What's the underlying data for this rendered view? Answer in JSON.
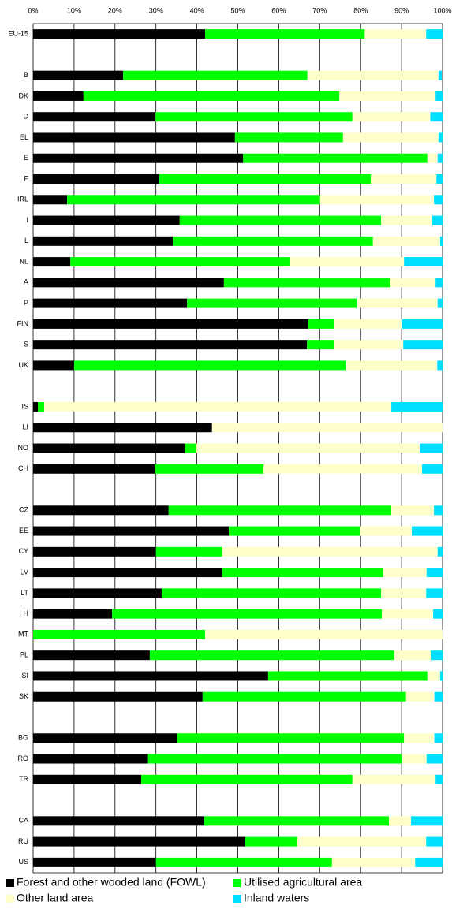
{
  "chart_data": {
    "type": "stacked-bar-horizontal",
    "categories": [
      "EU-15",
      null,
      "B",
      "DK",
      "D",
      "EL",
      "E",
      "F",
      "IRL",
      "I",
      "L",
      "NL",
      "A",
      "P",
      "FIN",
      "S",
      "UK",
      null,
      "IS",
      "LI",
      "NO",
      "CH",
      null,
      "CZ",
      "EE",
      "CY",
      "LV",
      "LT",
      "H",
      "MT",
      "PL",
      "SI",
      "SK",
      null,
      "BG",
      "RO",
      "TR",
      null,
      "CA",
      "RU",
      "US"
    ],
    "series": [
      {
        "name": "Forest and other wooded land (FOWL)",
        "color": "#000000",
        "values": [
          42,
          null,
          22,
          12.3,
          29.9,
          49.3,
          51.3,
          30.8,
          8.3,
          35.8,
          34.1,
          9.1,
          46.6,
          37.6,
          67.2,
          66.9,
          10,
          null,
          1.2,
          43.7,
          37,
          29.7,
          null,
          33.1,
          47.8,
          30,
          46.2,
          31.4,
          19.3,
          0,
          28.5,
          57.4,
          41.4,
          null,
          35.1,
          27.9,
          26.4,
          null,
          41.8,
          51.8,
          30
        ]
      },
      {
        "name": "Utilised agricultural area",
        "color": "#00ff00",
        "values": [
          39,
          null,
          45,
          62.5,
          48.1,
          26.4,
          45,
          51.7,
          61.8,
          49.2,
          48.9,
          53.7,
          40.7,
          41.4,
          6.4,
          6.7,
          66.3,
          null,
          1.5,
          0,
          2.9,
          26.6,
          null,
          54.4,
          32,
          16.2,
          39.3,
          53.6,
          65.9,
          42,
          59.7,
          38.9,
          49.7,
          null,
          55.5,
          62.1,
          51.6,
          null,
          45.1,
          12.7,
          43
        ]
      },
      {
        "name": "Other land area",
        "color": "#ffffcc",
        "values": [
          15,
          null,
          32,
          23.5,
          19,
          23.3,
          2.5,
          16,
          27.8,
          12.5,
          16.4,
          27.8,
          11,
          19.8,
          16.4,
          16.8,
          22.4,
          null,
          84.8,
          56.3,
          54.5,
          38.7,
          null,
          10.4,
          12.7,
          52.6,
          10.6,
          11,
          12.5,
          58,
          9.1,
          3.1,
          6.9,
          null,
          7.4,
          6.1,
          20.3,
          null,
          5.4,
          31.5,
          20.3
        ]
      },
      {
        "name": "Inland waters",
        "color": "#00dfff",
        "values": [
          4,
          null,
          0.8,
          1.7,
          3,
          1,
          1.2,
          1.5,
          2.1,
          2.5,
          0.6,
          9.4,
          1.7,
          1.2,
          10,
          9.6,
          1.3,
          null,
          12.5,
          0,
          5.6,
          5,
          null,
          2.1,
          7.5,
          1.2,
          3.9,
          4,
          2.3,
          0,
          2.7,
          0.6,
          2,
          null,
          2,
          3.9,
          1.7,
          null,
          7.7,
          4,
          6.7
        ]
      }
    ],
    "xlim": [
      0,
      100
    ],
    "xticks": [
      {
        "value": 0,
        "label": "0%"
      },
      {
        "value": 10,
        "label": "10%"
      },
      {
        "value": 20,
        "label": "20%"
      },
      {
        "value": 30,
        "label": "30%"
      },
      {
        "value": 40,
        "label": "40%"
      },
      {
        "value": 50,
        "label": "50%"
      },
      {
        "value": 60,
        "label": "60%"
      },
      {
        "value": 70,
        "label": "70%"
      },
      {
        "value": 80,
        "label": "80%"
      },
      {
        "value": 90,
        "label": "90%"
      },
      {
        "value": 100,
        "label": "100%"
      }
    ],
    "grid": true
  }
}
